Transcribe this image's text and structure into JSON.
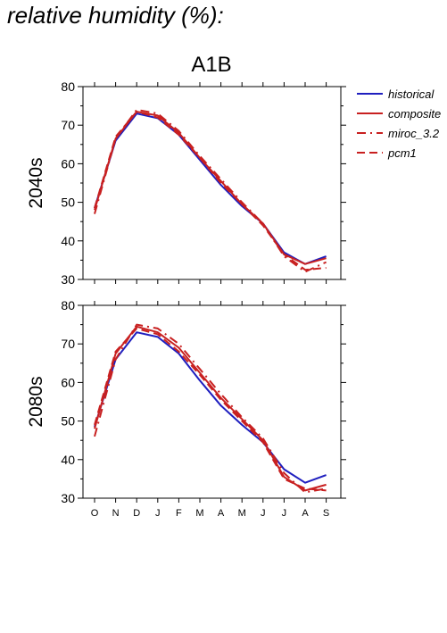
{
  "page_title": "relative humidity (%):",
  "colors": {
    "historical": "#1f1fbf",
    "model": "#c82020"
  },
  "chart_data": {
    "type": "line",
    "title": "A1B",
    "x_categories": [
      "O",
      "N",
      "D",
      "J",
      "F",
      "M",
      "A",
      "M",
      "J",
      "J",
      "A",
      "S"
    ],
    "legend_position": "top-right",
    "legend": [
      {
        "label": "historical",
        "style": "solid",
        "color": "#1f1fbf"
      },
      {
        "label": "composite",
        "style": "solid",
        "color": "#c82020"
      },
      {
        "label": "miroc_3.2",
        "style": "dashdot",
        "color": "#c82020"
      },
      {
        "label": "pcm1",
        "style": "dash",
        "color": "#c82020"
      }
    ],
    "panels": [
      {
        "ylabel": "2040s",
        "ylim": [
          30,
          80
        ],
        "yticks": [
          30,
          40,
          50,
          60,
          70,
          80
        ],
        "series": [
          {
            "name": "historical",
            "style": "solid",
            "color": "#1f1fbf",
            "values": [
              48.5,
              66.0,
              73.0,
              71.8,
              67.5,
              61.0,
              54.5,
              49.0,
              44.5,
              37.0,
              34.0,
              36.0
            ]
          },
          {
            "name": "composite",
            "style": "solid",
            "color": "#c82020",
            "values": [
              48.0,
              66.5,
              73.5,
              72.5,
              68.0,
              61.5,
              55.5,
              49.5,
              44.5,
              36.5,
              34.0,
              35.5
            ]
          },
          {
            "name": "miroc_3.2",
            "style": "dashdot",
            "color": "#c82020",
            "values": [
              47.0,
              66.5,
              74.0,
              73.0,
              68.5,
              62.0,
              56.0,
              50.0,
              44.5,
              36.0,
              32.0,
              34.5
            ]
          },
          {
            "name": "pcm1",
            "style": "dash",
            "color": "#c82020",
            "values": [
              48.5,
              67.0,
              73.5,
              72.0,
              67.5,
              61.5,
              55.0,
              49.5,
              44.0,
              36.5,
              32.5,
              33.0
            ]
          }
        ]
      },
      {
        "ylabel": "2080s",
        "ylim": [
          30,
          80
        ],
        "yticks": [
          30,
          40,
          50,
          60,
          70,
          80
        ],
        "series": [
          {
            "name": "historical",
            "style": "solid",
            "color": "#1f1fbf",
            "values": [
              48.5,
              66.0,
              73.0,
              71.8,
              67.5,
              60.5,
              54.0,
              49.0,
              44.5,
              37.5,
              34.0,
              36.0
            ]
          },
          {
            "name": "composite",
            "style": "solid",
            "color": "#c82020",
            "values": [
              48.0,
              67.5,
              74.5,
              73.0,
              69.0,
              62.5,
              56.0,
              50.5,
              45.0,
              35.5,
              32.0,
              33.5
            ]
          },
          {
            "name": "miroc_3.2",
            "style": "dashdot",
            "color": "#c82020",
            "values": [
              46.0,
              66.0,
              75.0,
              74.0,
              70.0,
              63.5,
              57.0,
              51.0,
              45.5,
              36.5,
              31.5,
              32.5
            ]
          },
          {
            "name": "pcm1",
            "style": "dash",
            "color": "#c82020",
            "values": [
              49.0,
              68.0,
              74.0,
              72.5,
              68.0,
              62.0,
              55.5,
              50.0,
              44.5,
              35.0,
              32.5,
              32.0
            ]
          }
        ]
      }
    ]
  }
}
